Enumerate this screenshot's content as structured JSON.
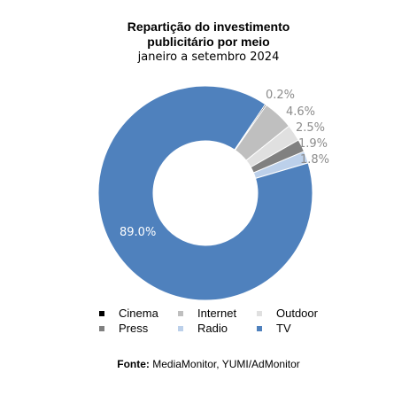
{
  "chart_data": {
    "type": "pie",
    "variant": "donut",
    "title_line1": "Repartição do investimento",
    "title_line2": "publicitário por meio",
    "subtitle": "janeiro a setembro 2024",
    "series": [
      {
        "name": "Cinema",
        "value": 0.2,
        "label": "0.2%",
        "color": "#000000"
      },
      {
        "name": "Internet",
        "value": 4.6,
        "label": "4.6%",
        "color": "#bfbfbf"
      },
      {
        "name": "Outdoor",
        "value": 2.5,
        "label": "2.5%",
        "color": "#e0e0e0"
      },
      {
        "name": "Press",
        "value": 1.9,
        "label": "1.9%",
        "color": "#808080"
      },
      {
        "name": "Radio",
        "value": 1.8,
        "label": "1.8%",
        "color": "#bcd0ea"
      },
      {
        "name": "TV",
        "value": 89.0,
        "label": "89.0%",
        "color": "#4f81bd"
      }
    ],
    "legend_position": "bottom"
  },
  "source_label": "Fonte:",
  "source_text": " MediaMonitor, YUMI/AdMonitor",
  "label_color": "#8c8c8c",
  "tv_label_color": "#ffffff"
}
